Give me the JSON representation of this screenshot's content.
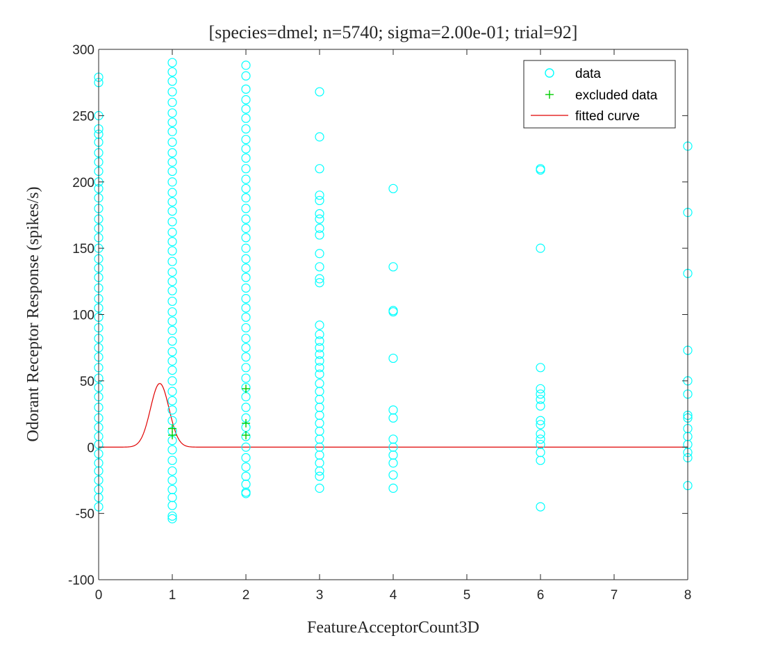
{
  "chart_data": {
    "type": "scatter",
    "title": "[species=dmel; n=5740; sigma=2.00e-01; trial=92]",
    "xlabel": "FeatureAcceptorCount3D",
    "ylabel": "Odorant Receptor Response (spikes/s)",
    "xlim": [
      0,
      8
    ],
    "ylim": [
      -100,
      300
    ],
    "xticks": [
      "0",
      "1",
      "2",
      "3",
      "4",
      "5",
      "6",
      "7",
      "8"
    ],
    "yticks": [
      "-100",
      "-50",
      "0",
      "50",
      "100",
      "150",
      "200",
      "250",
      "300"
    ],
    "grid": false,
    "legend_position": "top-right",
    "legend": [
      "data",
      "excluded data",
      "fitted curve"
    ],
    "colors": {
      "data": "#00ffff",
      "excluded": "#00cc00",
      "fit": "#e00000",
      "axis": "#262626"
    },
    "series": [
      {
        "name": "data",
        "marker": "circle",
        "points": [
          [
            0,
            279
          ],
          [
            0,
            275
          ],
          [
            0,
            250
          ],
          [
            0,
            240
          ],
          [
            0,
            236
          ],
          [
            0,
            230
          ],
          [
            0,
            222
          ],
          [
            0,
            215
          ],
          [
            0,
            208
          ],
          [
            0,
            200
          ],
          [
            0,
            195
          ],
          [
            0,
            188
          ],
          [
            0,
            180
          ],
          [
            0,
            172
          ],
          [
            0,
            165
          ],
          [
            0,
            158
          ],
          [
            0,
            150
          ],
          [
            0,
            142
          ],
          [
            0,
            135
          ],
          [
            0,
            128
          ],
          [
            0,
            120
          ],
          [
            0,
            112
          ],
          [
            0,
            105
          ],
          [
            0,
            98
          ],
          [
            0,
            90
          ],
          [
            0,
            82
          ],
          [
            0,
            75
          ],
          [
            0,
            68
          ],
          [
            0,
            60
          ],
          [
            0,
            52
          ],
          [
            0,
            45
          ],
          [
            0,
            38
          ],
          [
            0,
            30
          ],
          [
            0,
            22
          ],
          [
            0,
            15
          ],
          [
            0,
            8
          ],
          [
            0,
            2
          ],
          [
            0,
            -5
          ],
          [
            0,
            -12
          ],
          [
            0,
            -18
          ],
          [
            0,
            -25
          ],
          [
            0,
            -32
          ],
          [
            0,
            -38
          ],
          [
            0,
            -45
          ],
          [
            1,
            290
          ],
          [
            1,
            283
          ],
          [
            1,
            276
          ],
          [
            1,
            268
          ],
          [
            1,
            260
          ],
          [
            1,
            252
          ],
          [
            1,
            245
          ],
          [
            1,
            238
          ],
          [
            1,
            230
          ],
          [
            1,
            222
          ],
          [
            1,
            215
          ],
          [
            1,
            208
          ],
          [
            1,
            200
          ],
          [
            1,
            192
          ],
          [
            1,
            185
          ],
          [
            1,
            178
          ],
          [
            1,
            170
          ],
          [
            1,
            162
          ],
          [
            1,
            155
          ],
          [
            1,
            148
          ],
          [
            1,
            140
          ],
          [
            1,
            132
          ],
          [
            1,
            125
          ],
          [
            1,
            118
          ],
          [
            1,
            110
          ],
          [
            1,
            102
          ],
          [
            1,
            95
          ],
          [
            1,
            88
          ],
          [
            1,
            80
          ],
          [
            1,
            72
          ],
          [
            1,
            65
          ],
          [
            1,
            58
          ],
          [
            1,
            50
          ],
          [
            1,
            42
          ],
          [
            1,
            35
          ],
          [
            1,
            28
          ],
          [
            1,
            20
          ],
          [
            1,
            12
          ],
          [
            1,
            5
          ],
          [
            1,
            -2
          ],
          [
            1,
            -10
          ],
          [
            1,
            -18
          ],
          [
            1,
            -25
          ],
          [
            1,
            -32
          ],
          [
            1,
            -38
          ],
          [
            1,
            -44
          ],
          [
            1,
            -52
          ],
          [
            1,
            -54
          ],
          [
            2,
            288
          ],
          [
            2,
            280
          ],
          [
            2,
            270
          ],
          [
            2,
            262
          ],
          [
            2,
            255
          ],
          [
            2,
            248
          ],
          [
            2,
            240
          ],
          [
            2,
            232
          ],
          [
            2,
            225
          ],
          [
            2,
            218
          ],
          [
            2,
            210
          ],
          [
            2,
            202
          ],
          [
            2,
            195
          ],
          [
            2,
            188
          ],
          [
            2,
            180
          ],
          [
            2,
            172
          ],
          [
            2,
            165
          ],
          [
            2,
            158
          ],
          [
            2,
            150
          ],
          [
            2,
            142
          ],
          [
            2,
            135
          ],
          [
            2,
            128
          ],
          [
            2,
            120
          ],
          [
            2,
            112
          ],
          [
            2,
            105
          ],
          [
            2,
            98
          ],
          [
            2,
            90
          ],
          [
            2,
            82
          ],
          [
            2,
            75
          ],
          [
            2,
            68
          ],
          [
            2,
            60
          ],
          [
            2,
            52
          ],
          [
            2,
            45
          ],
          [
            2,
            38
          ],
          [
            2,
            30
          ],
          [
            2,
            22
          ],
          [
            2,
            15
          ],
          [
            2,
            8
          ],
          [
            2,
            0
          ],
          [
            2,
            -8
          ],
          [
            2,
            -15
          ],
          [
            2,
            -22
          ],
          [
            2,
            -28
          ],
          [
            2,
            -34
          ],
          [
            2,
            -35
          ],
          [
            3,
            268
          ],
          [
            3,
            234
          ],
          [
            3,
            210
          ],
          [
            3,
            190
          ],
          [
            3,
            186
          ],
          [
            3,
            176
          ],
          [
            3,
            172
          ],
          [
            3,
            165
          ],
          [
            3,
            160
          ],
          [
            3,
            146
          ],
          [
            3,
            136
          ],
          [
            3,
            127
          ],
          [
            3,
            124
          ],
          [
            3,
            92
          ],
          [
            3,
            85
          ],
          [
            3,
            80
          ],
          [
            3,
            75
          ],
          [
            3,
            70
          ],
          [
            3,
            65
          ],
          [
            3,
            60
          ],
          [
            3,
            55
          ],
          [
            3,
            48
          ],
          [
            3,
            42
          ],
          [
            3,
            36
          ],
          [
            3,
            30
          ],
          [
            3,
            24
          ],
          [
            3,
            18
          ],
          [
            3,
            12
          ],
          [
            3,
            6
          ],
          [
            3,
            0
          ],
          [
            3,
            -6
          ],
          [
            3,
            -12
          ],
          [
            3,
            -18
          ],
          [
            3,
            -22
          ],
          [
            3,
            -31
          ],
          [
            4,
            195
          ],
          [
            4,
            136
          ],
          [
            4,
            103
          ],
          [
            4,
            102
          ],
          [
            4,
            67
          ],
          [
            4,
            28
          ],
          [
            4,
            22
          ],
          [
            4,
            6
          ],
          [
            4,
            0
          ],
          [
            4,
            -6
          ],
          [
            4,
            -12
          ],
          [
            4,
            -21
          ],
          [
            4,
            -31
          ],
          [
            6,
            210
          ],
          [
            6,
            209
          ],
          [
            6,
            150
          ],
          [
            6,
            60
          ],
          [
            6,
            44
          ],
          [
            6,
            40
          ],
          [
            6,
            36
          ],
          [
            6,
            31
          ],
          [
            6,
            20
          ],
          [
            6,
            17
          ],
          [
            6,
            10
          ],
          [
            6,
            6
          ],
          [
            6,
            2
          ],
          [
            6,
            -4
          ],
          [
            6,
            -10
          ],
          [
            6,
            -45
          ],
          [
            8,
            227
          ],
          [
            8,
            177
          ],
          [
            8,
            131
          ],
          [
            8,
            73
          ],
          [
            8,
            50
          ],
          [
            8,
            40
          ],
          [
            8,
            24
          ],
          [
            8,
            22
          ],
          [
            8,
            14
          ],
          [
            8,
            8
          ],
          [
            8,
            2
          ],
          [
            8,
            -4
          ],
          [
            8,
            -8
          ],
          [
            8,
            -29
          ]
        ]
      },
      {
        "name": "excluded data",
        "marker": "plus",
        "points": [
          [
            1,
            14
          ],
          [
            1,
            9
          ],
          [
            2,
            44
          ],
          [
            2,
            18
          ],
          [
            2,
            9
          ]
        ]
      },
      {
        "name": "fitted curve",
        "marker": "line",
        "curve": {
          "amplitude": 48,
          "center": 0.83,
          "width": 0.126
        }
      }
    ]
  }
}
